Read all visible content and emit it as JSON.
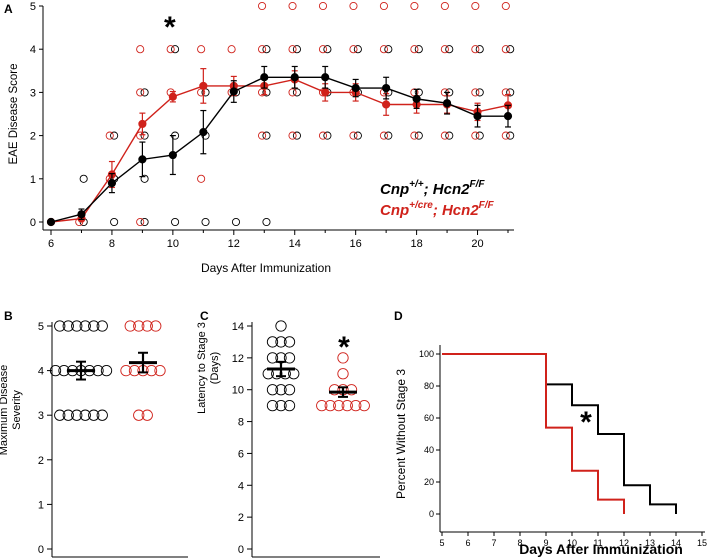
{
  "colors": {
    "control": "#000000",
    "cre": "#d0221b"
  },
  "panels": {
    "A": {
      "letter": "A",
      "chart_data": {
        "type": "line",
        "xlabel": "Days After Immunization",
        "ylabel": "EAE Disease Score",
        "xlim": [
          6,
          21
        ],
        "ylim": [
          0,
          5
        ],
        "x_ticks": [
          6,
          8,
          10,
          12,
          14,
          16,
          18,
          20
        ],
        "x_minor_ticks": [
          7,
          9,
          11,
          13,
          15,
          17,
          19,
          21
        ],
        "y_ticks": [
          0,
          1,
          2,
          3,
          4,
          5
        ],
        "annotation": "*",
        "annotation_x": 9.9,
        "legend": [
          {
            "base": "Cnp",
            "sup1": "+/+",
            "mid": "; Hcn2",
            "sup2": "F/F",
            "color": "#000000"
          },
          {
            "base": "Cnp",
            "sup1": "+/cre",
            "mid": "; Hcn2",
            "sup2": "F/F",
            "color": "#d0221b"
          }
        ],
        "series": [
          {
            "name": "Cnp+/+; Hcn2F/F",
            "color": "#000000",
            "x": [
              6,
              7,
              8,
              9,
              10,
              11,
              12,
              13,
              14,
              15,
              16,
              17,
              18,
              19,
              20,
              21
            ],
            "values": [
              0,
              0.18,
              0.9,
              1.45,
              1.55,
              2.08,
              3.02,
              3.35,
              3.35,
              3.35,
              3.1,
              3.1,
              2.85,
              2.75,
              2.45,
              2.45
            ],
            "err": [
              0,
              0.12,
              0.22,
              0.4,
              0.45,
              0.5,
              0.25,
              0.25,
              0.25,
              0.25,
              0.2,
              0.25,
              0.22,
              0.25,
              0.25,
              0.25
            ]
          },
          {
            "name": "Cnp+/cre; Hcn2F/F",
            "color": "#d0221b",
            "x": [
              6,
              7,
              8,
              9,
              10,
              11,
              12,
              13,
              14,
              15,
              16,
              17,
              18,
              19,
              20,
              21
            ],
            "values": [
              0,
              0.08,
              1.1,
              2.27,
              2.9,
              3.15,
              3.15,
              3.15,
              3.3,
              3.0,
              3.0,
              2.72,
              2.72,
              2.72,
              2.55,
              2.7
            ],
            "err": [
              0,
              0.05,
              0.3,
              0.25,
              0.12,
              0.4,
              0.22,
              0.2,
              0.2,
              0.2,
              0.2,
              0.25,
              0.2,
              0.2,
              0.2,
              0.25
            ]
          }
        ],
        "individual_points": [
          {
            "color": "#000000",
            "points": [
              [
                7,
                1
              ],
              [
                7,
                0
              ],
              [
                8,
                1
              ],
              [
                8,
                2
              ],
              [
                8,
                0
              ],
              [
                9,
                0
              ],
              [
                9,
                1
              ],
              [
                9,
                2
              ],
              [
                9,
                3
              ],
              [
                10,
                0
              ],
              [
                10,
                2
              ],
              [
                10,
                4
              ],
              [
                11,
                0
              ],
              [
                11,
                2
              ],
              [
                11,
                3
              ],
              [
                12,
                0
              ],
              [
                12,
                3
              ],
              [
                13,
                0
              ],
              [
                13,
                2
              ],
              [
                13,
                3
              ],
              [
                13,
                4
              ],
              [
                14,
                2
              ],
              [
                14,
                3
              ],
              [
                14,
                4
              ],
              [
                15,
                2
              ],
              [
                15,
                3
              ],
              [
                15,
                4
              ],
              [
                16,
                2
              ],
              [
                16,
                3
              ],
              [
                16,
                4
              ],
              [
                17,
                2
              ],
              [
                17,
                3
              ],
              [
                17,
                4
              ],
              [
                18,
                2
              ],
              [
                18,
                3
              ],
              [
                18,
                4
              ],
              [
                19,
                2
              ],
              [
                19,
                3
              ],
              [
                19,
                4
              ],
              [
                20,
                2
              ],
              [
                20,
                3
              ],
              [
                20,
                4
              ],
              [
                21,
                2
              ],
              [
                21,
                3
              ],
              [
                21,
                4
              ]
            ]
          },
          {
            "color": "#d0221b",
            "points": [
              [
                7,
                0
              ],
              [
                8,
                1
              ],
              [
                8,
                2
              ],
              [
                9,
                0
              ],
              [
                9,
                2
              ],
              [
                9,
                3
              ],
              [
                9,
                4
              ],
              [
                10,
                3
              ],
              [
                10,
                4
              ],
              [
                11,
                1
              ],
              [
                11,
                3
              ],
              [
                11,
                4
              ],
              [
                12,
                3
              ],
              [
                12,
                4
              ],
              [
                13,
                2
              ],
              [
                13,
                3
              ],
              [
                13,
                4
              ],
              [
                13,
                5
              ],
              [
                14,
                2
              ],
              [
                14,
                3
              ],
              [
                14,
                4
              ],
              [
                14,
                5
              ],
              [
                15,
                2
              ],
              [
                15,
                3
              ],
              [
                15,
                4
              ],
              [
                15,
                5
              ],
              [
                16,
                2
              ],
              [
                16,
                3
              ],
              [
                16,
                4
              ],
              [
                16,
                5
              ],
              [
                17,
                2
              ],
              [
                17,
                3
              ],
              [
                17,
                4
              ],
              [
                17,
                5
              ],
              [
                18,
                2
              ],
              [
                18,
                3
              ],
              [
                18,
                4
              ],
              [
                18,
                5
              ],
              [
                19,
                2
              ],
              [
                19,
                3
              ],
              [
                19,
                4
              ],
              [
                19,
                5
              ],
              [
                20,
                2
              ],
              [
                20,
                3
              ],
              [
                20,
                4
              ],
              [
                20,
                5
              ],
              [
                21,
                2
              ],
              [
                21,
                3
              ],
              [
                21,
                4
              ],
              [
                21,
                5
              ]
            ]
          }
        ]
      }
    },
    "B": {
      "letter": "B",
      "chart_data": {
        "type": "scatter",
        "ylabel_lines": [
          "Maximum Disease",
          "Severity"
        ],
        "ylim": [
          0,
          5
        ],
        "y_ticks": [
          0,
          1,
          2,
          3,
          4,
          5
        ],
        "groups": [
          {
            "name": "Cnp+/+; Hcn2F/F",
            "color": "#000000",
            "mean": 4.0,
            "sem": 0.2,
            "rows": [
              [
                5,
                6
              ],
              [
                4,
                7
              ],
              [
                3,
                6
              ]
            ]
          },
          {
            "name": "Cnp+/cre; Hcn2F/F",
            "color": "#d0221b",
            "mean": 4.18,
            "sem": 0.22,
            "rows": [
              [
                5,
                4
              ],
              [
                4,
                5
              ],
              [
                3,
                2
              ]
            ]
          }
        ]
      }
    },
    "C": {
      "letter": "C",
      "chart_data": {
        "type": "scatter",
        "ylabel_lines": [
          "Latency to Stage 3",
          "(Days)"
        ],
        "ylim": [
          0,
          14
        ],
        "y_ticks": [
          0,
          2,
          4,
          6,
          8,
          10,
          12,
          14
        ],
        "annotation": "*",
        "groups": [
          {
            "name": "Cnp+/+; Hcn2F/F",
            "color": "#000000",
            "mean": 11.3,
            "sem": 0.45,
            "rows": [
              [
                14,
                1
              ],
              [
                13,
                3
              ],
              [
                12,
                3
              ],
              [
                11,
                4
              ],
              [
                10,
                3
              ],
              [
                9,
                3
              ]
            ]
          },
          {
            "name": "Cnp+/cre; Hcn2F/F",
            "color": "#d0221b",
            "mean": 9.85,
            "sem": 0.3,
            "rows": [
              [
                12,
                1
              ],
              [
                11,
                1
              ],
              [
                10,
                3
              ],
              [
                9,
                6
              ]
            ]
          }
        ]
      }
    },
    "D": {
      "letter": "D",
      "chart_data": {
        "type": "line",
        "xlabel": "Days After Immunization",
        "ylabel": "Percent Without Stage 3",
        "xlim": [
          5,
          15
        ],
        "ylim": [
          0,
          100
        ],
        "x_ticks": [
          5,
          6,
          7,
          8,
          9,
          10,
          11,
          12,
          13,
          14,
          15
        ],
        "y_ticks": [
          0,
          20,
          40,
          60,
          80,
          100
        ],
        "annotation": "*",
        "series": [
          {
            "name": "Cnp+/+; Hcn2F/F",
            "color": "#000000",
            "step": true,
            "x": [
              5,
              9,
              10,
              11,
              12,
              13,
              14
            ],
            "values": [
              100,
              81,
              68,
              50,
              18,
              6,
              0
            ]
          },
          {
            "name": "Cnp+/cre; Hcn2F/F",
            "color": "#d0221b",
            "step": true,
            "x": [
              5,
              9,
              10,
              11,
              12
            ],
            "values": [
              100,
              54,
              27,
              9,
              0
            ]
          }
        ]
      }
    }
  }
}
